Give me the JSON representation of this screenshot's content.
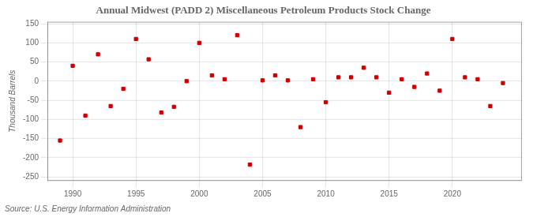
{
  "chart_data": {
    "type": "scatter",
    "title": "Annual Midwest (PADD 2) Miscellaneous Petroleum Products Stock Change",
    "ylabel": "Thousand Barrels",
    "source": "Source: U.S. Energy Information Administration",
    "x": [
      1989,
      1990,
      1991,
      1992,
      1993,
      1994,
      1995,
      1996,
      1997,
      1998,
      1999,
      2000,
      2001,
      2002,
      2003,
      2004,
      2005,
      2006,
      2007,
      2008,
      2009,
      2010,
      2011,
      2012,
      2013,
      2014,
      2015,
      2016,
      2017,
      2018,
      2019,
      2020,
      2021,
      2022,
      2023,
      2024
    ],
    "values": [
      -155,
      40,
      -90,
      70,
      -65,
      -20,
      110,
      57,
      -82,
      -67,
      0,
      100,
      15,
      5,
      120,
      -218,
      2,
      15,
      2,
      -120,
      5,
      -55,
      10,
      10,
      35,
      10,
      -30,
      5,
      -15,
      20,
      -25,
      110,
      10,
      5,
      -65,
      -5
    ],
    "color": "#cc0000",
    "marker": "square",
    "xlim": [
      1988.0,
      2025.5
    ],
    "ylim": [
      -260,
      155
    ],
    "xticks": [
      1990,
      1995,
      2000,
      2005,
      2010,
      2015,
      2020
    ],
    "yticks": [
      -250,
      -200,
      -150,
      -100,
      -50,
      0,
      50,
      100,
      150
    ],
    "grid": true
  }
}
